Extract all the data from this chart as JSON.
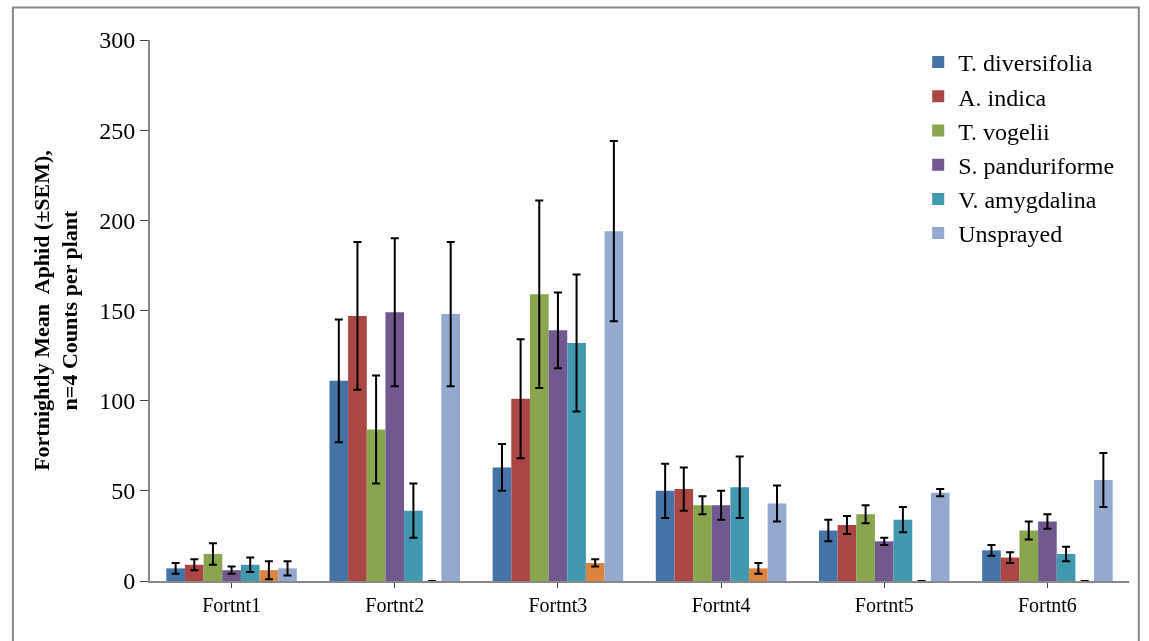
{
  "chart_data": {
    "type": "bar",
    "ylabel": "Fortnightly Mean  Aphid (±SEM),\nn=4 Counts per plant",
    "categories": [
      "Fortnt1",
      "Fortnt2",
      "Fortnt3",
      "Fortnt4",
      "Fortnt5",
      "Fortnt6"
    ],
    "series": [
      {
        "name": "T. diversifolia",
        "color": "#4572a7",
        "values": [
          7,
          111,
          63,
          50,
          28,
          17
        ],
        "errors": [
          3,
          34,
          13,
          15,
          6,
          3
        ]
      },
      {
        "name": "A. indica",
        "color": "#aa4643",
        "values": [
          9,
          147,
          101,
          51,
          31,
          13
        ],
        "errors": [
          3,
          41,
          33,
          12,
          5,
          3
        ]
      },
      {
        "name": "T. vogelii",
        "color": "#89a54e",
        "values": [
          15,
          84,
          159,
          42,
          37,
          28
        ],
        "errors": [
          6,
          30,
          52,
          5,
          5,
          5
        ]
      },
      {
        "name": "S. panduriforme",
        "color": "#71588f",
        "values": [
          6,
          149,
          139,
          42,
          22,
          33
        ],
        "errors": [
          2,
          41,
          21,
          8,
          2,
          4
        ]
      },
      {
        "name": "V. amygdalina",
        "color": "#4198af",
        "values": [
          9,
          39,
          132,
          52,
          34,
          15
        ],
        "errors": [
          4,
          15,
          38,
          17,
          7,
          4
        ]
      },
      {
        "color": "#db843d",
        "values": [
          6,
          0,
          10,
          7,
          0,
          0
        ],
        "errors": [
          5,
          null,
          2,
          3,
          null,
          null
        ]
      },
      {
        "name": "Unsprayed",
        "color": "#93a9cf",
        "values": [
          7,
          148,
          194,
          43,
          49,
          56
        ],
        "errors": [
          4,
          40,
          50,
          10,
          2,
          15
        ]
      }
    ],
    "ylim": [
      0,
      300
    ],
    "yticks": [
      0,
      50,
      100,
      150,
      200,
      250,
      300
    ],
    "legend": "top right"
  }
}
